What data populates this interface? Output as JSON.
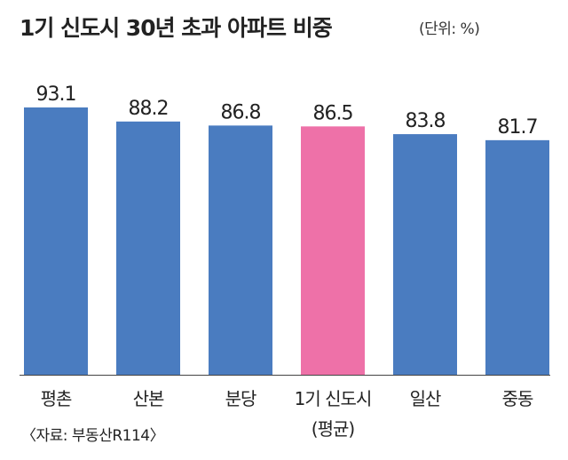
{
  "colors": {
    "bar": "#4a7cc0",
    "highlight": "#ee71a8",
    "text": "#222222",
    "baseline": "#444444"
  },
  "chart_data": {
    "type": "bar",
    "title": "1기 신도시 30년 초과 아파트 비중",
    "unit_note": "(단위: %)",
    "source": "〈자료: 부동산R114〉",
    "categories": [
      "평촌",
      "산본",
      "분당",
      "1기 신도시",
      "일산",
      "중동"
    ],
    "category_sublabels": [
      "",
      "",
      "",
      "(평균)",
      "",
      ""
    ],
    "values": [
      93.1,
      88.2,
      86.8,
      86.5,
      83.8,
      81.7
    ],
    "highlight_index": 3,
    "ylim": [
      0,
      93.1
    ],
    "grid": false,
    "legend": "none"
  }
}
